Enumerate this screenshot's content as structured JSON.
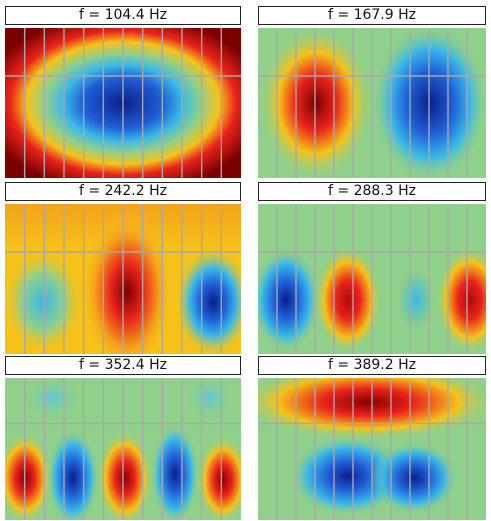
{
  "panels": [
    {
      "title": "f = 104.4 Hz",
      "frequency": 104.4,
      "unit": "Hz"
    },
    {
      "title": "f = 167.9 Hz",
      "frequency": 167.9,
      "unit": "Hz"
    },
    {
      "title": "f = 242.2 Hz",
      "frequency": 242.2,
      "unit": "Hz"
    },
    {
      "title": "f = 288.3 Hz",
      "frequency": 288.3,
      "unit": "Hz"
    },
    {
      "title": "f = 352.4 Hz",
      "frequency": 352.4,
      "unit": "Hz"
    },
    {
      "title": "f = 389.2 Hz",
      "frequency": 389.2,
      "unit": "Hz"
    }
  ],
  "colors": {
    "positive_peak": "#7a0000",
    "positive": "#e8231b",
    "mid_warm": "#f6c21a",
    "neutral": "#8fd08a",
    "negative": "#1f5fd6",
    "negative_peak": "#0b1f8a",
    "grid": "#a8a8a8"
  }
}
